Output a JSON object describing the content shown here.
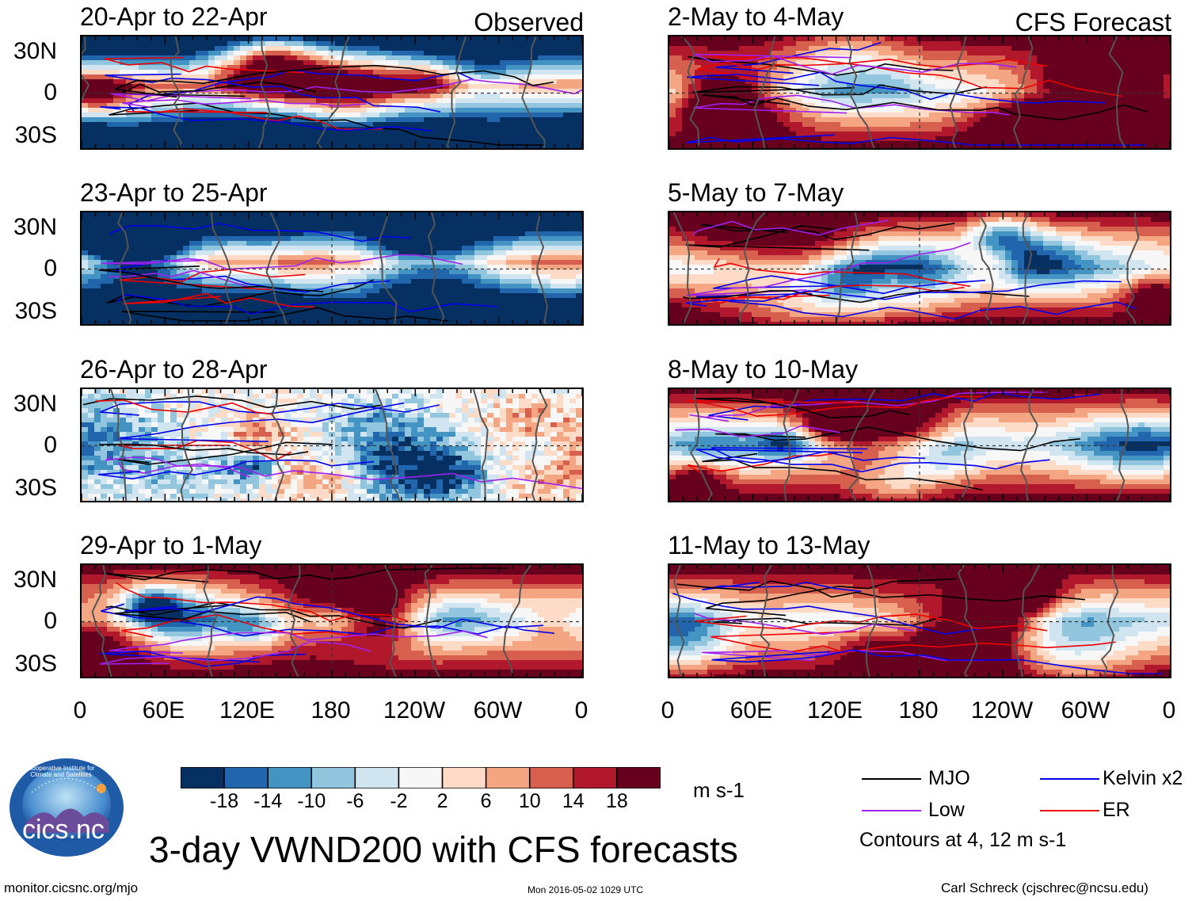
{
  "chart_data": {
    "type": "heatmap",
    "title": "3-day VWND200 with CFS forecasts",
    "variable": "VWND200",
    "units": "m s-1",
    "columns": [
      {
        "label": "Observed",
        "panels": [
          {
            "title": "20-Apr to 22-Apr"
          },
          {
            "title": "23-Apr to 25-Apr"
          },
          {
            "title": "26-Apr to 28-Apr"
          },
          {
            "title": "29-Apr to 1-May"
          }
        ]
      },
      {
        "label": "CFS Forecast",
        "panels": [
          {
            "title": "2-May to 4-May"
          },
          {
            "title": "5-May to 7-May"
          },
          {
            "title": "8-May to 10-May"
          },
          {
            "title": "11-May to 13-May"
          }
        ]
      }
    ],
    "x_ticks": [
      "0",
      "60E",
      "120E",
      "180",
      "120W",
      "60W",
      "0"
    ],
    "y_ticks": [
      "30N",
      "0",
      "30S"
    ],
    "colorbar": {
      "ticks": [
        "-18",
        "-14",
        "-10",
        "-6",
        "-2",
        "2",
        "6",
        "10",
        "14",
        "18"
      ],
      "colors": [
        "#053061",
        "#2166ac",
        "#4393c3",
        "#92c5de",
        "#d1e5f0",
        "#f7f7f7",
        "#fddbc7",
        "#f4a582",
        "#d6604d",
        "#b2182b",
        "#67001f"
      ],
      "units_label": "m s-1"
    },
    "legend": [
      {
        "label": "MJO",
        "color": "#000000"
      },
      {
        "label": "Kelvin x2",
        "color": "#0000ee"
      },
      {
        "label": "Low",
        "color": "#a020f0"
      },
      {
        "label": "ER",
        "color": "#ee0000"
      }
    ],
    "contour_note": "Contours at 4, 12 m s-1"
  },
  "footer": {
    "url": "monitor.cicsnc.org/mjo",
    "timestamp": "Mon 2016-05-02 1029 UTC",
    "author": "Carl Schreck (cjschrec@ncsu.edu)"
  },
  "logo": {
    "text": "cics.nc",
    "ring_text": "Cooperative Institute for Climate and Satellites"
  }
}
